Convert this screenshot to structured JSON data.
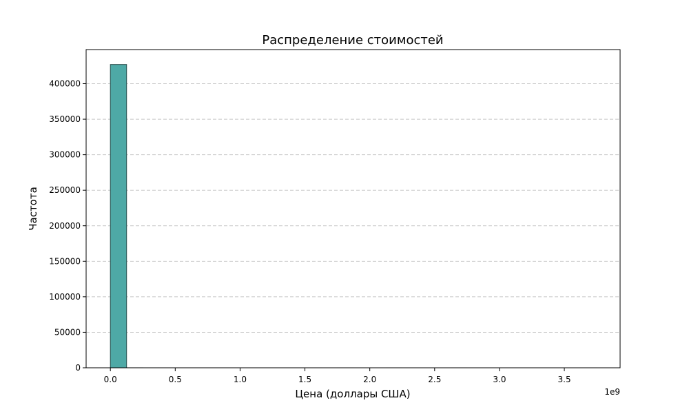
{
  "chart_data": {
    "type": "bar",
    "title": "Распределение стоимостей",
    "xlabel": "Цена (доллары США)",
    "ylabel": "Частота",
    "x_offset_label": "1e9",
    "xlim": [
      -0.187,
      3.93
    ],
    "ylim": [
      0,
      448000
    ],
    "x_ticks": [
      0.0,
      0.5,
      1.0,
      1.5,
      2.0,
      2.5,
      3.0,
      3.5
    ],
    "x_tick_labels": [
      "0.0",
      "0.5",
      "1.0",
      "1.5",
      "2.0",
      "2.5",
      "3.0",
      "3.5"
    ],
    "y_ticks": [
      0,
      50000,
      100000,
      150000,
      200000,
      250000,
      300000,
      350000,
      400000
    ],
    "y_tick_labels": [
      "0",
      "50000",
      "100000",
      "150000",
      "200000",
      "250000",
      "300000",
      "350000",
      "400000"
    ],
    "grid": "y-dashed",
    "bins": {
      "start": 0.0,
      "end": 3.75,
      "count": 30,
      "counts": [
        427000,
        30,
        10,
        5,
        4,
        3,
        2,
        2,
        1,
        1,
        1,
        1,
        1,
        0,
        1,
        0,
        0,
        1,
        0,
        0,
        0,
        1,
        0,
        0,
        0,
        0,
        0,
        0,
        0,
        1
      ]
    },
    "colors": {
      "bar_fill": "#4ea9a6",
      "bar_edge": "#2b4f4e",
      "grid": "#c8c8c8",
      "axis": "#000000"
    }
  }
}
